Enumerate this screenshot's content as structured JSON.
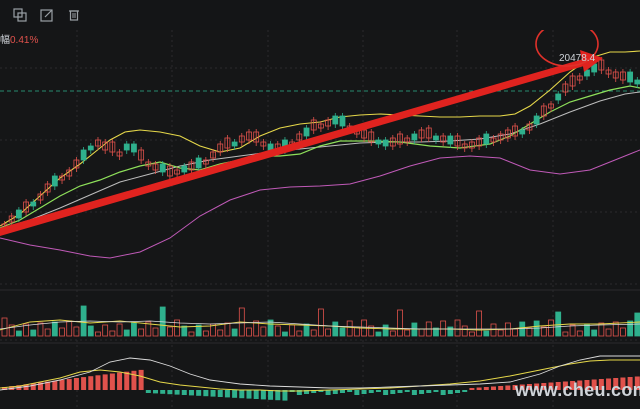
{
  "toolbar": {
    "tools": [
      {
        "name": "copy-icon"
      },
      {
        "name": "edit-icon"
      },
      {
        "name": "trash-icon"
      }
    ]
  },
  "header": {
    "label_prefix": "幅",
    "change_value": "0.41%"
  },
  "annotation": {
    "price_value": "20478.4"
  },
  "watermark": {
    "text": "www.cheu.com"
  },
  "colors": {
    "up": "#e0524c",
    "down": "#2fb08d",
    "ma_yellow": "#e6d84a",
    "ma_green": "#8ee05a",
    "ma_white": "#c9c9c9",
    "ma_purple": "#c05ab8",
    "trend_arrow": "#e0231f",
    "highlight_circle": "#e0312a"
  }
}
